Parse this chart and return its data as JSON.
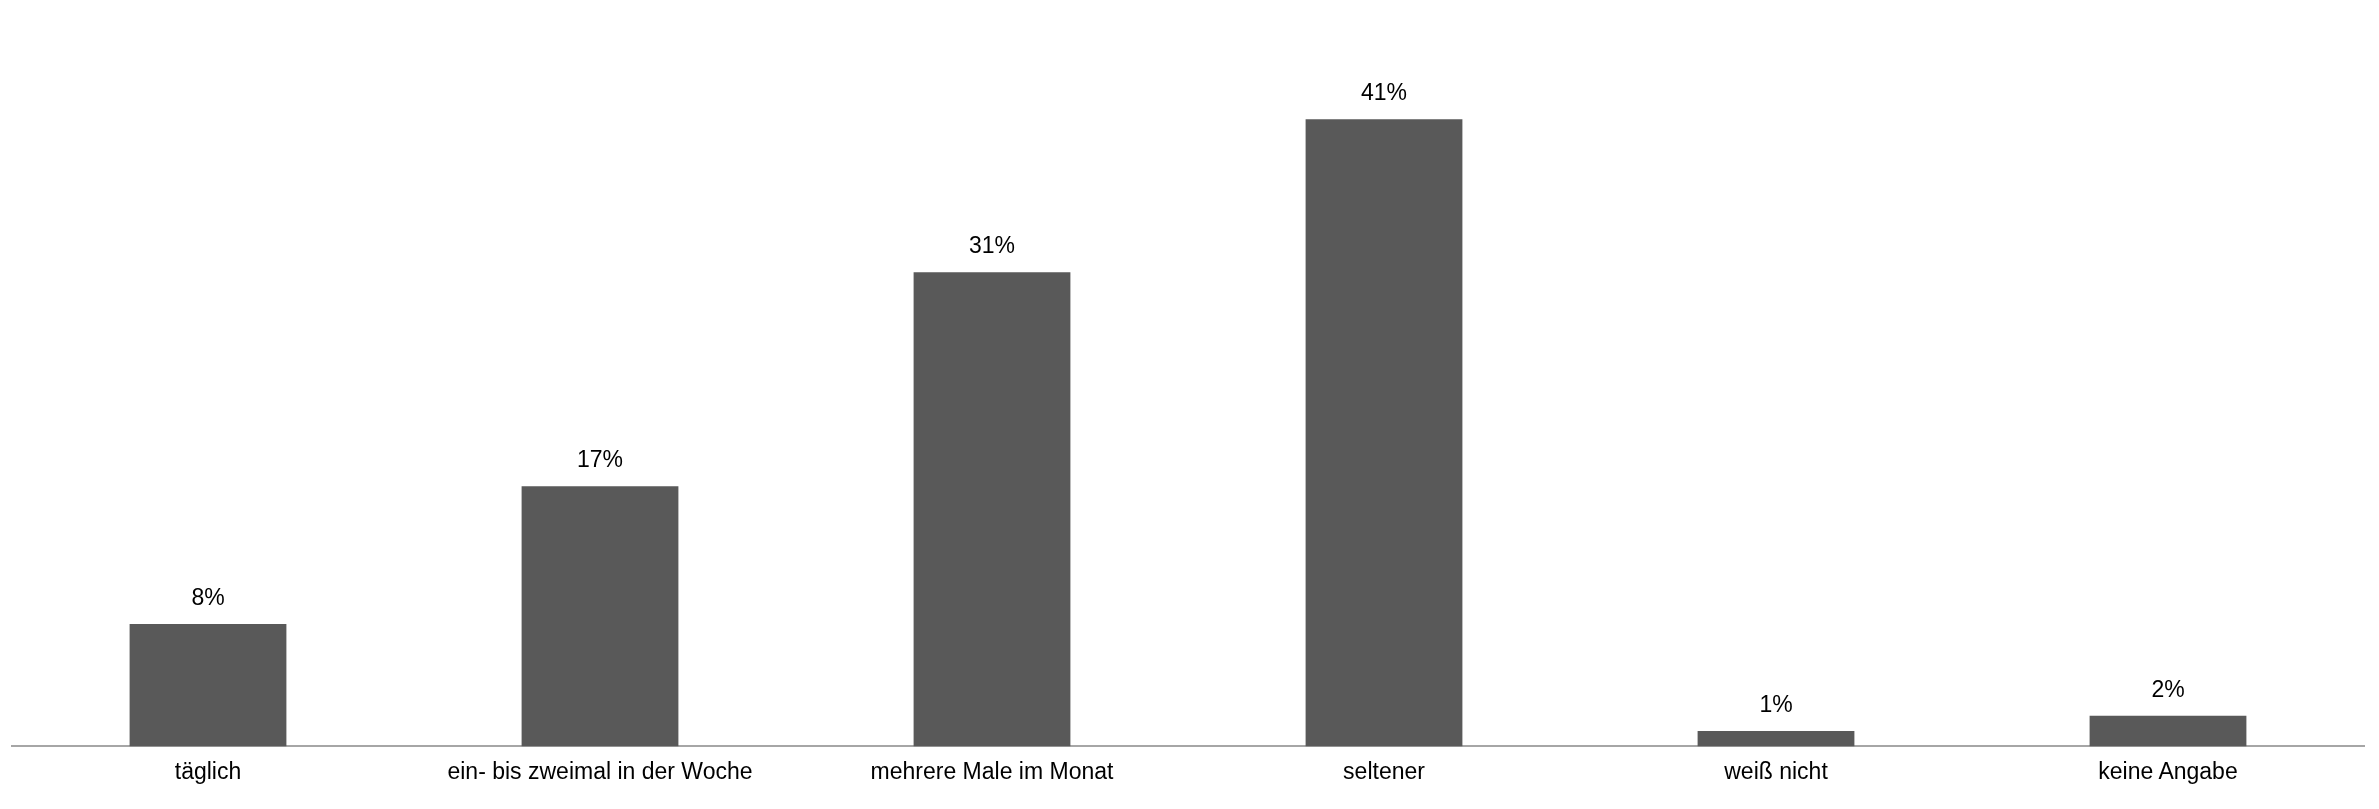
{
  "chart_data": {
    "type": "bar",
    "categories": [
      "täglich",
      "ein- bis zweimal in der Woche",
      "mehrere Male im Monat",
      "seltener",
      "weiß nicht",
      "keine Angabe"
    ],
    "values": [
      8,
      17,
      31,
      41,
      1,
      2
    ],
    "value_labels": [
      "8%",
      "17%",
      "31%",
      "41%",
      "1%",
      "2%"
    ],
    "color": "#595959",
    "grid": false,
    "legend": false,
    "tick_labels": "x"
  }
}
